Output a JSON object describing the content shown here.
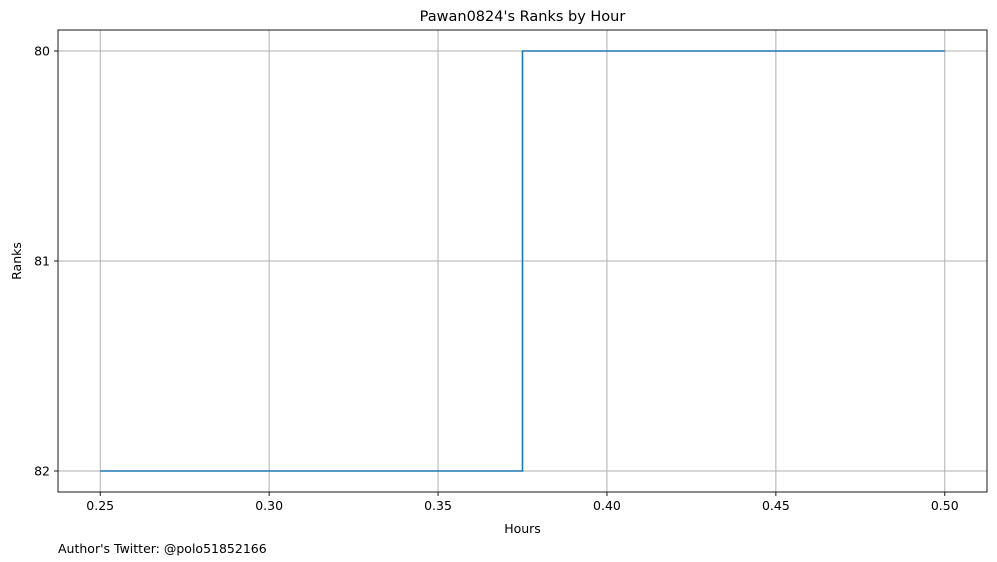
{
  "chart_data": {
    "type": "line",
    "drawstyle": "steps-post",
    "title": "Pawan0824's Ranks by Hour",
    "xlabel": "Hours",
    "ylabel": "Ranks",
    "footnote": "Author's Twitter: @polo51852166",
    "x_ticks": [
      0.25,
      0.3,
      0.35,
      0.4,
      0.45,
      0.5
    ],
    "x_tick_labels": [
      "0.25",
      "0.30",
      "0.35",
      "0.40",
      "0.45",
      "0.50"
    ],
    "y_ticks": [
      80,
      81,
      82
    ],
    "y_tick_labels": [
      "80",
      "81",
      "82"
    ],
    "xlim": [
      0.2375,
      0.5125
    ],
    "ylim": [
      82.1,
      79.9
    ],
    "y_inverted": true,
    "grid": true,
    "series": [
      {
        "x": [
          0.25,
          0.375,
          0.5
        ],
        "y": [
          82,
          80,
          80
        ],
        "color": "#1f77b4"
      }
    ]
  }
}
